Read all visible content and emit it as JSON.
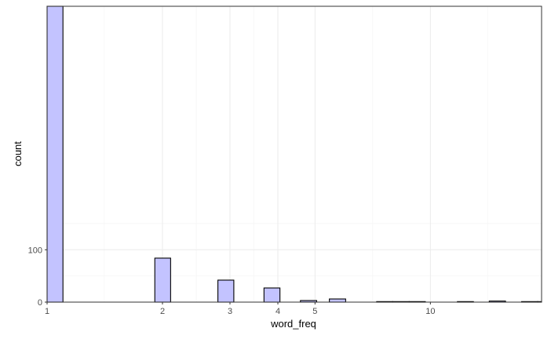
{
  "chart_data": {
    "type": "bar",
    "title": "",
    "xlabel": "word_freq",
    "ylabel": "count",
    "x_scale": "log10",
    "xlim": [
      1,
      19.5
    ],
    "ylim": [
      0,
      565
    ],
    "x_ticks": [
      {
        "value": 1,
        "label": "1"
      },
      {
        "value": 2,
        "label": "2"
      },
      {
        "value": 3,
        "label": "3"
      },
      {
        "value": 4,
        "label": "4"
      },
      {
        "value": 5,
        "label": "5"
      },
      {
        "value": 10,
        "label": "10"
      }
    ],
    "x_minor_ticks": [
      1.41,
      2.45,
      3.46,
      7.07,
      14.1
    ],
    "y_ticks": [
      {
        "value": 0,
        "label": "0"
      },
      {
        "value": 100,
        "label": "100"
      }
    ],
    "y_minor_ticks": [
      50,
      150
    ],
    "bars": [
      {
        "x0": 1.0,
        "x1": 1.1,
        "count": 565
      },
      {
        "x0": 1.91,
        "x1": 2.1,
        "count": 84
      },
      {
        "x0": 2.79,
        "x1": 3.07,
        "count": 42
      },
      {
        "x0": 3.68,
        "x1": 4.05,
        "count": 27
      },
      {
        "x0": 4.58,
        "x1": 5.05,
        "count": 3
      },
      {
        "x0": 5.45,
        "x1": 6.01,
        "count": 6
      },
      {
        "x0": 7.24,
        "x1": 7.97,
        "count": 1
      },
      {
        "x0": 7.97,
        "x1": 8.8,
        "count": 1
      },
      {
        "x0": 8.8,
        "x1": 9.7,
        "count": 1
      },
      {
        "x0": 11.76,
        "x1": 12.95,
        "count": 1
      },
      {
        "x0": 14.24,
        "x1": 15.7,
        "count": 2
      },
      {
        "x0": 17.29,
        "x1": 19.05,
        "count": 1
      },
      {
        "x0": 19.05,
        "x1": 21.0,
        "count": 1
      }
    ],
    "bar_fill": "#c3c3ff",
    "bar_stroke": "#000000",
    "grid": true,
    "grid_major_color": "#ebebeb",
    "grid_minor_color": "#f3f3f3",
    "panel_border_color": "#333333"
  }
}
